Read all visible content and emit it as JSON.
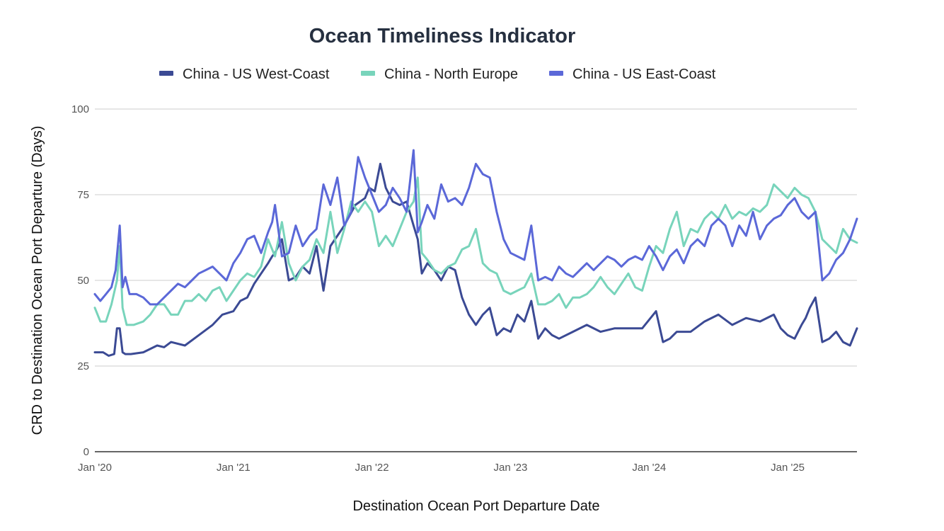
{
  "chart_data": {
    "type": "line",
    "title": "Ocean Timeliness Indicator",
    "xlabel": "Destination Ocean Port Departure Date",
    "ylabel": "CRD to Destination Ocean Port Departure (Days)",
    "ylim": [
      0,
      100
    ],
    "yticks": [
      0,
      25,
      50,
      75,
      100
    ],
    "xlim": [
      2020.0,
      2025.5
    ],
    "xticks": [
      {
        "x": 2020,
        "label": "Jan '20"
      },
      {
        "x": 2021,
        "label": "Jan '21"
      },
      {
        "x": 2022,
        "label": "Jan '22"
      },
      {
        "x": 2023,
        "label": "Jan '23"
      },
      {
        "x": 2024,
        "label": "Jan '24"
      },
      {
        "x": 2025,
        "label": "Jan '25"
      }
    ],
    "grid": true,
    "legend": "top-center",
    "series": [
      {
        "name": "China - US West-Coast",
        "color": "#3b4a94",
        "x": [
          2020.0,
          2020.06,
          2020.1,
          2020.14,
          2020.16,
          2020.18,
          2020.2,
          2020.22,
          2020.26,
          2020.35,
          2020.45,
          2020.5,
          2020.55,
          2020.65,
          2020.75,
          2020.85,
          2020.92,
          2021.0,
          2021.05,
          2021.1,
          2021.15,
          2021.2,
          2021.25,
          2021.28,
          2021.3,
          2021.35,
          2021.4,
          2021.45,
          2021.5,
          2021.55,
          2021.6,
          2021.65,
          2021.7,
          2021.75,
          2021.8,
          2021.88,
          2021.95,
          2021.98,
          2022.02,
          2022.06,
          2022.1,
          2022.15,
          2022.2,
          2022.25,
          2022.3,
          2022.33,
          2022.36,
          2022.4,
          2022.45,
          2022.5,
          2022.55,
          2022.6,
          2022.65,
          2022.7,
          2022.75,
          2022.8,
          2022.85,
          2022.9,
          2022.95,
          2023.0,
          2023.05,
          2023.1,
          2023.15,
          2023.2,
          2023.25,
          2023.3,
          2023.35,
          2023.45,
          2023.55,
          2023.65,
          2023.75,
          2023.85,
          2023.95,
          2024.05,
          2024.1,
          2024.15,
          2024.2,
          2024.3,
          2024.4,
          2024.5,
          2024.6,
          2024.7,
          2024.8,
          2024.9,
          2024.95,
          2025.0,
          2025.05,
          2025.1,
          2025.13,
          2025.16,
          2025.2,
          2025.25,
          2025.3,
          2025.35,
          2025.4,
          2025.45,
          2025.5
        ],
        "values": [
          29,
          29,
          28,
          28.5,
          36,
          36,
          29,
          28.5,
          28.5,
          29,
          31,
          30.5,
          32,
          31,
          34,
          37,
          40,
          41,
          44,
          45,
          49,
          52,
          55,
          57,
          58,
          62,
          50,
          51,
          54,
          52,
          60,
          47,
          60,
          63,
          66,
          72,
          74,
          77,
          76,
          84,
          77,
          73,
          72,
          73,
          66,
          62,
          52,
          55,
          53,
          50,
          54,
          53,
          45,
          40,
          37,
          40,
          42,
          34,
          36,
          35,
          40,
          38,
          44,
          33,
          36,
          34,
          33,
          35,
          37,
          35,
          36,
          36,
          36,
          41,
          32,
          33,
          35,
          35,
          38,
          40,
          37,
          39,
          38,
          40,
          36,
          34,
          33,
          37,
          39,
          42,
          45,
          32,
          33,
          35,
          32,
          31,
          36
        ]
      },
      {
        "name": "China - North Europe",
        "color": "#78d4bb",
        "x": [
          2020.0,
          2020.04,
          2020.08,
          2020.12,
          2020.16,
          2020.18,
          2020.2,
          2020.23,
          2020.28,
          2020.35,
          2020.4,
          2020.45,
          2020.5,
          2020.55,
          2020.6,
          2020.65,
          2020.7,
          2020.75,
          2020.8,
          2020.85,
          2020.9,
          2020.95,
          2021.0,
          2021.05,
          2021.1,
          2021.15,
          2021.2,
          2021.25,
          2021.3,
          2021.35,
          2021.4,
          2021.45,
          2021.5,
          2021.55,
          2021.6,
          2021.65,
          2021.7,
          2021.75,
          2021.8,
          2021.85,
          2021.9,
          2021.95,
          2022.0,
          2022.05,
          2022.1,
          2022.15,
          2022.2,
          2022.25,
          2022.3,
          2022.33,
          2022.36,
          2022.4,
          2022.45,
          2022.5,
          2022.55,
          2022.6,
          2022.65,
          2022.7,
          2022.75,
          2022.8,
          2022.85,
          2022.9,
          2022.95,
          2023.0,
          2023.05,
          2023.1,
          2023.15,
          2023.2,
          2023.25,
          2023.3,
          2023.35,
          2023.4,
          2023.45,
          2023.5,
          2023.55,
          2023.6,
          2023.65,
          2023.7,
          2023.75,
          2023.8,
          2023.85,
          2023.9,
          2023.95,
          2024.0,
          2024.05,
          2024.1,
          2024.15,
          2024.2,
          2024.25,
          2024.3,
          2024.35,
          2024.4,
          2024.45,
          2024.5,
          2024.55,
          2024.6,
          2024.65,
          2024.7,
          2024.75,
          2024.8,
          2024.85,
          2024.9,
          2024.95,
          2025.0,
          2025.05,
          2025.1,
          2025.15,
          2025.2,
          2025.25,
          2025.3,
          2025.35,
          2025.4,
          2025.45,
          2025.5
        ],
        "values": [
          42,
          38,
          38,
          43,
          50,
          60,
          42,
          37,
          37,
          38,
          40,
          43,
          43,
          40,
          40,
          44,
          44,
          46,
          44,
          47,
          48,
          44,
          47,
          50,
          52,
          51,
          54,
          62,
          57,
          67,
          55,
          50,
          54,
          56,
          62,
          58,
          70,
          58,
          65,
          73,
          70,
          73,
          70,
          60,
          63,
          60,
          65,
          70,
          73,
          80,
          58,
          56,
          53,
          52,
          54,
          55,
          59,
          60,
          65,
          55,
          53,
          52,
          47,
          46,
          47,
          48,
          52,
          43,
          43,
          44,
          46,
          42,
          45,
          45,
          46,
          48,
          51,
          48,
          46,
          49,
          52,
          48,
          47,
          54,
          60,
          58,
          65,
          70,
          60,
          65,
          64,
          68,
          70,
          68,
          72,
          68,
          70,
          69,
          71,
          70,
          72,
          78,
          76,
          74,
          77,
          75,
          74,
          70,
          62,
          60,
          58,
          65,
          62,
          61
        ]
      },
      {
        "name": "China - US East-Coast",
        "color": "#5b68d8",
        "x": [
          2020.0,
          2020.04,
          2020.08,
          2020.12,
          2020.15,
          2020.18,
          2020.2,
          2020.22,
          2020.25,
          2020.3,
          2020.35,
          2020.4,
          2020.45,
          2020.5,
          2020.55,
          2020.6,
          2020.65,
          2020.7,
          2020.75,
          2020.8,
          2020.85,
          2020.9,
          2020.95,
          2021.0,
          2021.05,
          2021.1,
          2021.15,
          2021.2,
          2021.25,
          2021.28,
          2021.3,
          2021.35,
          2021.4,
          2021.45,
          2021.5,
          2021.55,
          2021.6,
          2021.65,
          2021.7,
          2021.75,
          2021.8,
          2021.85,
          2021.9,
          2021.95,
          2022.0,
          2022.05,
          2022.1,
          2022.15,
          2022.2,
          2022.25,
          2022.3,
          2022.33,
          2022.36,
          2022.4,
          2022.45,
          2022.5,
          2022.55,
          2022.6,
          2022.65,
          2022.7,
          2022.75,
          2022.8,
          2022.85,
          2022.9,
          2022.95,
          2023.0,
          2023.05,
          2023.1,
          2023.15,
          2023.2,
          2023.25,
          2023.3,
          2023.35,
          2023.4,
          2023.45,
          2023.5,
          2023.55,
          2023.6,
          2023.65,
          2023.7,
          2023.75,
          2023.8,
          2023.85,
          2023.9,
          2023.95,
          2024.0,
          2024.05,
          2024.1,
          2024.15,
          2024.2,
          2024.25,
          2024.3,
          2024.35,
          2024.4,
          2024.45,
          2024.5,
          2024.55,
          2024.6,
          2024.65,
          2024.7,
          2024.75,
          2024.8,
          2024.85,
          2024.9,
          2024.95,
          2025.0,
          2025.05,
          2025.1,
          2025.15,
          2025.2,
          2025.25,
          2025.3,
          2025.35,
          2025.4,
          2025.45,
          2025.5
        ],
        "values": [
          46,
          44,
          46,
          48,
          53,
          66,
          48,
          51,
          46,
          46,
          45,
          43,
          43,
          45,
          47,
          49,
          48,
          50,
          52,
          53,
          54,
          52,
          50,
          55,
          58,
          62,
          63,
          58,
          64,
          67,
          72,
          57,
          58,
          66,
          60,
          63,
          65,
          78,
          72,
          80,
          66,
          70,
          86,
          80,
          75,
          70,
          72,
          77,
          74,
          70,
          88,
          64,
          67,
          72,
          68,
          78,
          73,
          74,
          72,
          77,
          84,
          81,
          80,
          70,
          62,
          58,
          57,
          56,
          66,
          50,
          51,
          50,
          54,
          52,
          51,
          53,
          55,
          53,
          55,
          57,
          56,
          54,
          56,
          57,
          56,
          60,
          57,
          53,
          57,
          59,
          55,
          60,
          62,
          60,
          66,
          68,
          66,
          60,
          66,
          63,
          70,
          62,
          66,
          68,
          69,
          72,
          74,
          70,
          68,
          70,
          50,
          52,
          56,
          58,
          62,
          68
        ]
      }
    ]
  }
}
